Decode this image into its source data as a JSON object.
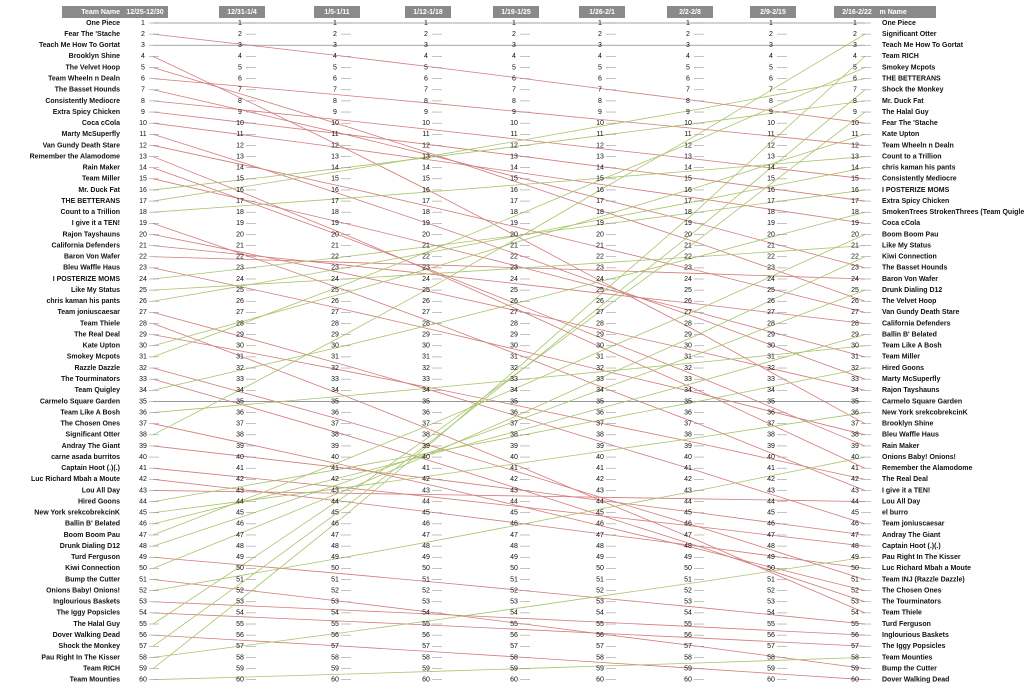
{
  "header": {
    "left": "Team Name",
    "right": "Team Name",
    "weeks": [
      "12/25-12/30",
      "12/31-1/4",
      "1/5-1/11",
      "1/12-1/18",
      "1/19-1/25",
      "1/26-2/1",
      "2/2-2/8",
      "2/9-2/15",
      "2/16-2/22"
    ]
  },
  "ranks": [
    1,
    2,
    3,
    4,
    5,
    6,
    7,
    8,
    9,
    10,
    11,
    12,
    13,
    14,
    15,
    16,
    17,
    18,
    19,
    20,
    21,
    22,
    23,
    24,
    25,
    26,
    27,
    28,
    29,
    30,
    31,
    32,
    33,
    34,
    35,
    36,
    37,
    38,
    39,
    40,
    41,
    42,
    43,
    44,
    45,
    46,
    47,
    48,
    49,
    50,
    51,
    52,
    53,
    54,
    55,
    56,
    57,
    58,
    59,
    60
  ],
  "left_teams": [
    "One Piece",
    "Fear The 'Stache",
    "Teach Me How To Gortat",
    "Brooklyn Shine",
    "The Velvet Hoop",
    "Team Wheeln n Dealn",
    "The Basset Hounds",
    "Consistently Mediocre",
    "Extra Spicy Chicken",
    "Coca cCola",
    "Marty McSuperfly",
    "Van Gundy Death Stare",
    "Remember the Alamodome",
    "Rain Maker",
    "Team Miller",
    "Mr. Duck Fat",
    "THE BETTERANS",
    "Count to a Trillion",
    "I give it a TEN!",
    "Rajon Tayshauns",
    "California Defenders",
    "Baron Von Wafer",
    "Bleu Waffle Haus",
    "I POSTERIZE MOMS",
    "Like My Status",
    "chris kaman his pants",
    "Team joniuscaesar",
    "Team Thiele",
    "The Real Deal",
    "Kate Upton",
    "Smokey Mcpots",
    "Razzle Dazzle",
    "The Tourminators",
    "Team Quigley",
    "Carmelo Square Garden",
    "Team Like A Bosh",
    "The Chosen Ones",
    "Significant Otter",
    "Andray The Giant",
    "carne asada burritos",
    "Captain Hoot (.)(.)",
    "Luc Richard Mbah a Moute",
    "Lou All Day",
    "Hired Goons",
    "New York srekcobrekcinK",
    "Ballin B' Belated",
    "Boom Boom Pau",
    "Drunk Dialing D12",
    "Turd Ferguson",
    "Kiwi Connection",
    "Bump the Cutter",
    "Onions Baby! Onions!",
    "Inglourious Baskets",
    "The Iggy Popsicles",
    "The Halal Guy",
    "Dover Walking Dead",
    "Shock the Monkey",
    "Pau Right In The Kisser",
    "Team RICH",
    "Team Mounties"
  ],
  "right_teams": [
    "One Piece",
    "Significant Otter",
    "Teach Me How To Gortat",
    "Team RICH",
    "Smokey Mcpots",
    "THE BETTERANS",
    "Shock the Monkey",
    "Mr. Duck Fat",
    "The Halal Guy",
    "Fear The 'Stache",
    "Kate Upton",
    "Team Wheeln n Dealn",
    "Count to a Trillion",
    "chris kaman his pants",
    "Consistently Mediocre",
    "I POSTERIZE MOMS",
    "Extra Spicy Chicken",
    "SmokenTrees StrokenThrees (Team Quigley)",
    "Coca cCola",
    "Boom Boom Pau",
    "Like My Status",
    "Kiwi Connection",
    "The Basset Hounds",
    "Baron Von Wafer",
    "Drunk Dialing D12",
    "The Velvet Hoop",
    "Van Gundy Death Stare",
    "California Defenders",
    "Ballin B' Belated",
    "Team Like A Bosh",
    "Team Miller",
    "Hired Goons",
    "Marty McSuperfly",
    "Rajon Tayshauns",
    "Carmelo Square Garden",
    "New York srekcobrekcinK",
    "Brooklyn Shine",
    "Bleu Waffle Haus",
    "Rain Maker",
    "Onions Baby! Onions!",
    "Remember the Alamodome",
    "The Real Deal",
    "I give it a TEN!",
    "Lou All Day",
    "el burro",
    "Team joniuscaesar",
    "Andray The Giant",
    "Captain Hoot (.)(.)",
    "Pau Right In The Kisser",
    "Luc Richard Mbah a Moute",
    "Team INJ (Razzle Dazzle)",
    "The Chosen Ones",
    "The Tourminators",
    "Team Thiele",
    "Turd Ferguson",
    "Inglourious Baskets",
    "The Iggy Popsicles",
    "Team Mounties",
    "Bump the Cutter",
    "Dover Walking Dead"
  ]
}
